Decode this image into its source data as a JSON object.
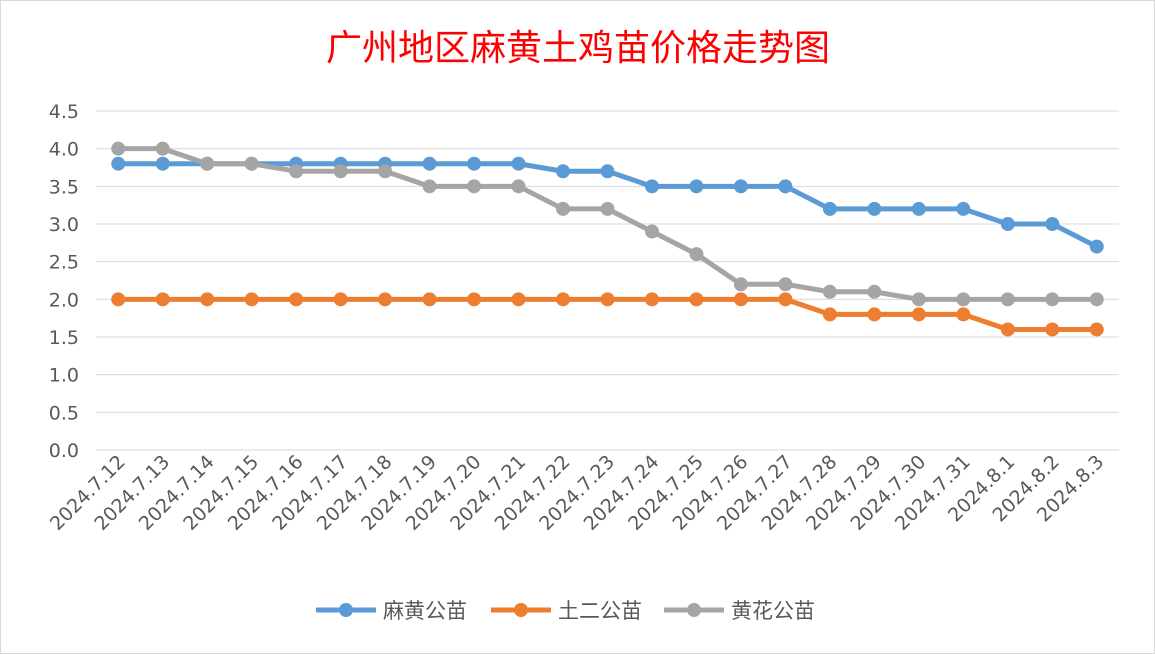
{
  "chart_data": {
    "type": "line",
    "title": "广州地区麻黄土鸡苗价格走势图",
    "xlabel": "",
    "ylabel": "",
    "ylim": [
      0,
      4.5
    ],
    "yticks": [
      "0.0",
      "0.5",
      "1.0",
      "1.5",
      "2.0",
      "2.5",
      "3.0",
      "3.5",
      "4.0",
      "4.5"
    ],
    "grid": true,
    "legend_position": "bottom",
    "categories": [
      "2024.7.12",
      "2024.7.13",
      "2024.7.14",
      "2024.7.15",
      "2024.7.16",
      "2024.7.17",
      "2024.7.18",
      "2024.7.19",
      "2024.7.20",
      "2024.7.21",
      "2024.7.22",
      "2024.7.23",
      "2024.7.24",
      "2024.7.25",
      "2024.7.26",
      "2024.7.27",
      "2024.7.28",
      "2024.7.29",
      "2024.7.30",
      "2024.7.31",
      "2024.8.1",
      "2024.8.2",
      "2024.8.3"
    ],
    "series": [
      {
        "name": "麻黄公苗",
        "color": "#5b9bd5",
        "values": [
          3.8,
          3.8,
          3.8,
          3.8,
          3.8,
          3.8,
          3.8,
          3.8,
          3.8,
          3.8,
          3.7,
          3.7,
          3.5,
          3.5,
          3.5,
          3.5,
          3.2,
          3.2,
          3.2,
          3.2,
          3.0,
          3.0,
          2.7
        ]
      },
      {
        "name": "土二公苗",
        "color": "#ed7d31",
        "values": [
          2.0,
          2.0,
          2.0,
          2.0,
          2.0,
          2.0,
          2.0,
          2.0,
          2.0,
          2.0,
          2.0,
          2.0,
          2.0,
          2.0,
          2.0,
          2.0,
          1.8,
          1.8,
          1.8,
          1.8,
          1.6,
          1.6,
          1.6
        ]
      },
      {
        "name": "黄花公苗",
        "color": "#a5a5a5",
        "values": [
          4.0,
          4.0,
          3.8,
          3.8,
          3.7,
          3.7,
          3.7,
          3.5,
          3.5,
          3.5,
          3.2,
          3.2,
          2.9,
          2.6,
          2.2,
          2.2,
          2.1,
          2.1,
          2.0,
          2.0,
          2.0,
          2.0,
          2.0
        ]
      }
    ]
  }
}
